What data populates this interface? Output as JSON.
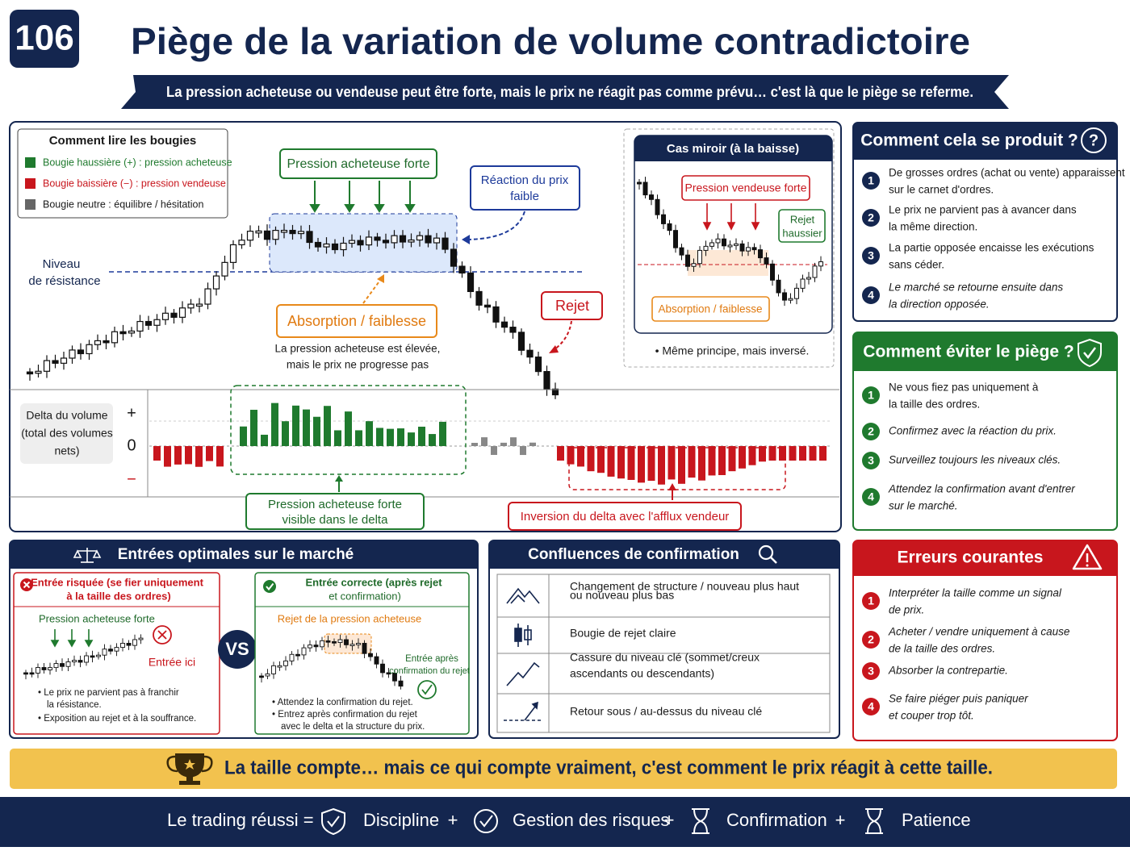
{
  "header": {
    "badge": "106",
    "title": "Piège de la variation de volume contradictoire",
    "subtitle": "La pression acheteuse ou vendeuse peut être forte, mais le prix ne réagit pas comme prévu… c'est là que le piège se referme."
  },
  "legend": {
    "title": "Comment lire les bougies",
    "items": [
      "Bougie haussière (+) : pression acheteuse",
      "Bougie baissière (−) : pression vendeuse",
      "Bougie neutre : équilibre / hésitation"
    ]
  },
  "main_chart": {
    "resistance_label": [
      "Niveau",
      "de résistance"
    ],
    "buy_pressure": "Pression acheteuse forte",
    "weak_reaction": [
      "Réaction du prix",
      "faible"
    ],
    "absorption": "Absorption / faiblesse",
    "absorption_note": [
      "La pression acheteuse est élevée,",
      "mais le prix ne progresse pas"
    ],
    "rejection": "Rejet",
    "delta_label": [
      "Delta du volume",
      "(total des volumes",
      "nets)"
    ],
    "delta_axis": [
      "+",
      "0",
      "−"
    ],
    "delta_buy_note": [
      "Pression acheteuse forte",
      "visible dans le delta"
    ],
    "delta_reversal": "Inversion du delta avec l'afflux vendeur"
  },
  "mirror": {
    "title": "Cas miroir (à la baisse)",
    "sell_pressure": "Pression vendeuse forte",
    "bull_rejection": [
      "Rejet",
      "haussier"
    ],
    "absorption": "Absorption / faiblesse",
    "note": "• Même principe, mais inversé."
  },
  "how": {
    "title": "Comment cela se produit ?",
    "icon": "?",
    "items": [
      {
        "num": "1",
        "lines": [
          "De grosses ordres (achat ou vente) apparaissent",
          "sur le carnet d'ordres."
        ]
      },
      {
        "num": "2",
        "lines": [
          "Le prix ne parvient pas à avancer dans",
          "la même direction."
        ]
      },
      {
        "num": "3",
        "lines": [
          "La partie opposée encaisse les exécutions",
          "sans céder."
        ]
      },
      {
        "num": "4",
        "lines": [
          "Le marché se retourne ensuite dans",
          "la direction opposée."
        ]
      }
    ]
  },
  "avoid": {
    "title": "Comment éviter le piège ?",
    "items": [
      {
        "num": "1",
        "lines": [
          "Ne vous fiez pas uniquement à",
          "la taille des ordres."
        ]
      },
      {
        "num": "2",
        "lines": [
          "Confirmez avec la réaction du prix."
        ]
      },
      {
        "num": "3",
        "lines": [
          "Surveillez toujours les niveaux clés."
        ]
      },
      {
        "num": "4",
        "lines": [
          "Attendez la confirmation avant d'entrer",
          "sur le marché."
        ]
      }
    ]
  },
  "mistakes": {
    "title": "Erreurs courantes",
    "items": [
      {
        "num": "1",
        "lines": [
          "Interpréter la taille comme un signal",
          "de prix."
        ]
      },
      {
        "num": "2",
        "lines": [
          "Acheter / vendre uniquement à cause",
          "de la taille des ordres."
        ]
      },
      {
        "num": "3",
        "lines": [
          "Absorber la contrepartie."
        ]
      },
      {
        "num": "4",
        "lines": [
          "Se faire piéger puis paniquer",
          "et couper trop tôt."
        ]
      }
    ]
  },
  "entries": {
    "title": "Entrées optimales sur le marché",
    "risky": {
      "title": [
        "Entrée risquée (se fier uniquement",
        "à la taille des ordres)"
      ],
      "label": "Pression acheteuse forte",
      "entry": "Entrée ici",
      "bullets": [
        [
          "• Le prix ne parvient pas à franchir",
          "la résistance."
        ],
        [
          "• Exposition au rejet et à la souffrance."
        ]
      ]
    },
    "vs": "VS",
    "correct": {
      "title": [
        "Entrée correcte (après rejet",
        "et confirmation)"
      ],
      "label": "Rejet de la pression acheteuse",
      "entry": [
        "Entrée après",
        "confirmation du rejet"
      ],
      "bullets": [
        [
          "• Attendez la confirmation du rejet."
        ],
        [
          "• Entrez après confirmation du rejet",
          "avec le delta et la structure du prix."
        ]
      ]
    }
  },
  "confluences": {
    "title": "Confluences de confirmation",
    "items": [
      [
        "Changement de structure / nouveau plus haut",
        "ou nouveau plus bas"
      ],
      [
        "Bougie de rejet claire"
      ],
      [
        "Cassure du niveau clé (sommet/creux",
        "ascendants ou descendants)"
      ],
      [
        "Retour sous / au-dessus du niveau clé"
      ]
    ]
  },
  "banner": "La taille compte… mais ce qui compte vraiment, c'est comment le prix réagit à cette taille.",
  "footer": {
    "lead": "Le trading réussi =",
    "items": [
      "Discipline",
      "Gestion des risques",
      "Confirmation",
      "Patience"
    ],
    "separator": "+"
  }
}
